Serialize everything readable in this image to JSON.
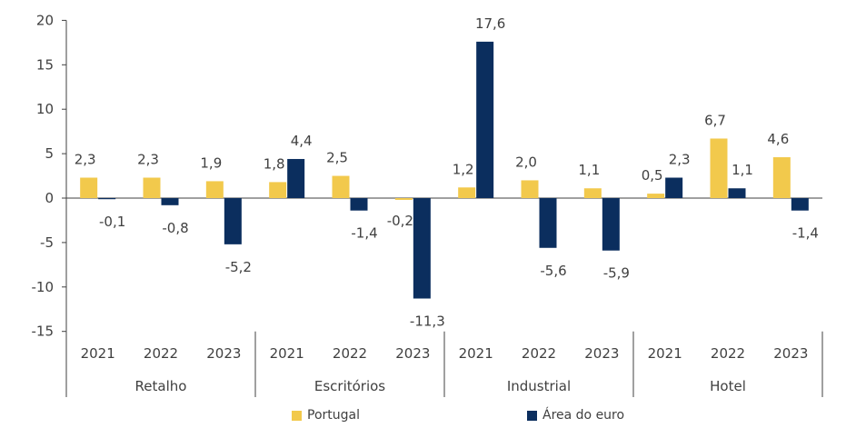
{
  "chart_data": {
    "type": "bar",
    "title": "",
    "xlabel": "",
    "ylabel": "",
    "ylim": [
      -15,
      20
    ],
    "yticks": [
      20,
      15,
      10,
      5,
      0,
      -5,
      -10,
      -15
    ],
    "grid": false,
    "legend_position": "bottom",
    "groups": [
      {
        "name": "Retalho",
        "years": [
          "2021",
          "2022",
          "2023"
        ]
      },
      {
        "name": "Escritórios",
        "years": [
          "2021",
          "2022",
          "2023"
        ]
      },
      {
        "name": "Industrial",
        "years": [
          "2021",
          "2022",
          "2023"
        ]
      },
      {
        "name": "Hotel",
        "years": [
          "2021",
          "2022",
          "2023"
        ]
      }
    ],
    "series": [
      {
        "name": "Portugal",
        "color": "#F2C94C",
        "values": [
          2.3,
          2.3,
          1.9,
          1.8,
          2.5,
          -0.2,
          1.2,
          2.0,
          1.1,
          0.5,
          6.7,
          4.6
        ],
        "labels": [
          "2,3",
          "2,3",
          "1,9",
          "1,8",
          "2,5",
          "-0,2",
          "1,2",
          "2,0",
          "1,1",
          "0,5",
          "6,7",
          "4,6"
        ]
      },
      {
        "name": "Área do euro",
        "color": "#0B2E5E",
        "values": [
          -0.1,
          -0.8,
          -5.2,
          4.4,
          -1.4,
          -11.3,
          17.6,
          -5.6,
          -5.9,
          2.3,
          1.1,
          -1.4
        ],
        "labels": [
          "-0,1",
          "-0,8",
          "-5,2",
          "4,4",
          "-1,4",
          "-11,3",
          "17,6",
          "-5,6",
          "-5,9",
          "2,3",
          "1,1",
          "-1,4"
        ]
      }
    ]
  }
}
